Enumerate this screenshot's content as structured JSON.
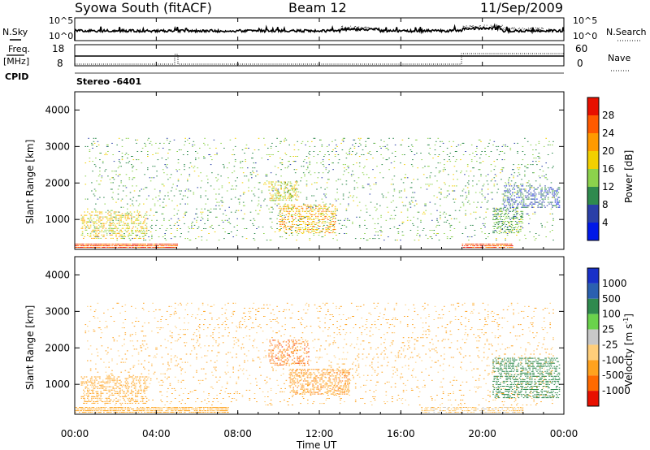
{
  "header": {
    "station": "Syowa South (fitACF)",
    "beam": "Beam 12",
    "date": "11/Sep/2009"
  },
  "labels": {
    "nsky": "N.Sky",
    "nsearch": "N.Search",
    "freq_line1": "Freq.",
    "freq_line2": "[MHz]",
    "cpid": "CPID",
    "nave": "Nave",
    "stereo": "Stereo -6401",
    "time_axis": "Time UT",
    "slant_range": "Slant Range [km]",
    "power_title": "Power [dB]",
    "velocity_title": "Velocity [m s",
    "velocity_sup": "-1",
    "velocity_close": "]"
  },
  "noise_panel": {
    "left_ticks": [
      "10^5",
      "10^0"
    ],
    "right_ticks": [
      "10^5",
      "10^0"
    ]
  },
  "freq_panel": {
    "left_ticks": [
      "18",
      "8"
    ],
    "right_ticks": [
      "60",
      "0"
    ]
  },
  "power_scale": {
    "ticks": [
      "28",
      "24",
      "20",
      "16",
      "12",
      "8",
      "4"
    ],
    "colors": [
      "#0018e8",
      "#2a3fa8",
      "#2f8a4e",
      "#8cd24c",
      "#f2d000",
      "#ff9a00",
      "#ff5a00",
      "#e81000"
    ]
  },
  "velocity_scale": {
    "ticks": [
      "1000",
      "500",
      "100",
      "25",
      "-25",
      "-100",
      "-500",
      "-1000"
    ],
    "colors": [
      "#e81000",
      "#ff6a00",
      "#ffa21e",
      "#ffce7a",
      "#c8c8c8",
      "#6ad24c",
      "#2f8a4e",
      "#2a60b0",
      "#1830c8"
    ]
  },
  "chart_data": [
    {
      "type": "heatmap",
      "title": "Power [dB]",
      "xlabel": "",
      "ylabel": "Slant Range [km]",
      "x_ticks": [
        "00:00",
        "04:00",
        "08:00",
        "12:00",
        "16:00",
        "20:00",
        "00:00"
      ],
      "y_ticks": [
        "1000",
        "2000",
        "3000",
        "4000"
      ],
      "xlim": [
        0,
        24
      ],
      "ylim": [
        180,
        4500
      ],
      "colorbar_ticks": [
        4,
        8,
        12,
        16,
        20,
        24,
        28
      ],
      "colorbar_range": [
        0,
        30
      ],
      "regions": [
        {
          "t0": 0.0,
          "t1": 5.0,
          "r0": 200,
          "r1": 320,
          "value": 27,
          "density": 0.9
        },
        {
          "t0": 19.0,
          "t1": 21.5,
          "r0": 200,
          "r1": 300,
          "value": 27,
          "density": 0.8
        },
        {
          "t0": 0.3,
          "t1": 3.5,
          "r0": 450,
          "r1": 1200,
          "value": 18,
          "density": 0.35
        },
        {
          "t0": 10.0,
          "t1": 12.8,
          "r0": 600,
          "r1": 1400,
          "value": 20,
          "density": 0.4
        },
        {
          "t0": 9.5,
          "t1": 11.0,
          "r0": 1500,
          "r1": 2000,
          "value": 17,
          "density": 0.35
        },
        {
          "t0": 20.5,
          "t1": 22.0,
          "r0": 600,
          "r1": 1300,
          "value": 12,
          "density": 0.45
        },
        {
          "t0": 21.0,
          "t1": 23.8,
          "r0": 1300,
          "r1": 1900,
          "value": 7,
          "density": 0.35
        },
        {
          "t0": 0.5,
          "t1": 23.5,
          "r0": 400,
          "r1": 3200,
          "value": 12,
          "density": 0.06
        }
      ]
    },
    {
      "type": "heatmap",
      "title": "Velocity [m s-1]",
      "xlabel": "Time UT",
      "ylabel": "Slant Range [km]",
      "x_ticks": [
        "00:00",
        "04:00",
        "08:00",
        "12:00",
        "16:00",
        "20:00",
        "00:00"
      ],
      "y_ticks": [
        "1000",
        "2000",
        "3000",
        "4000"
      ],
      "xlim": [
        0,
        24
      ],
      "ylim": [
        180,
        4500
      ],
      "colorbar_ticks": [
        1000,
        500,
        100,
        25,
        -25,
        -100,
        -500,
        -1000
      ],
      "regions": [
        {
          "t0": 0.0,
          "t1": 7.5,
          "r0": 200,
          "r1": 350,
          "value": -150,
          "density": 0.7
        },
        {
          "t0": 17.0,
          "t1": 22.0,
          "r0": 200,
          "r1": 350,
          "value": -60,
          "density": 0.5
        },
        {
          "t0": 10.5,
          "t1": 13.5,
          "r0": 700,
          "r1": 1400,
          "value": -400,
          "density": 0.45
        },
        {
          "t0": 9.5,
          "t1": 11.5,
          "r0": 1500,
          "r1": 2200,
          "value": -700,
          "density": 0.3
        },
        {
          "t0": 20.5,
          "t1": 23.8,
          "r0": 600,
          "r1": 1700,
          "value": 300,
          "density": 0.45
        },
        {
          "t0": 0.3,
          "t1": 3.5,
          "r0": 450,
          "r1": 1200,
          "value": -200,
          "density": 0.35
        },
        {
          "t0": 0.5,
          "t1": 23.5,
          "r0": 400,
          "r1": 3200,
          "value": -120,
          "density": 0.06
        }
      ]
    }
  ]
}
